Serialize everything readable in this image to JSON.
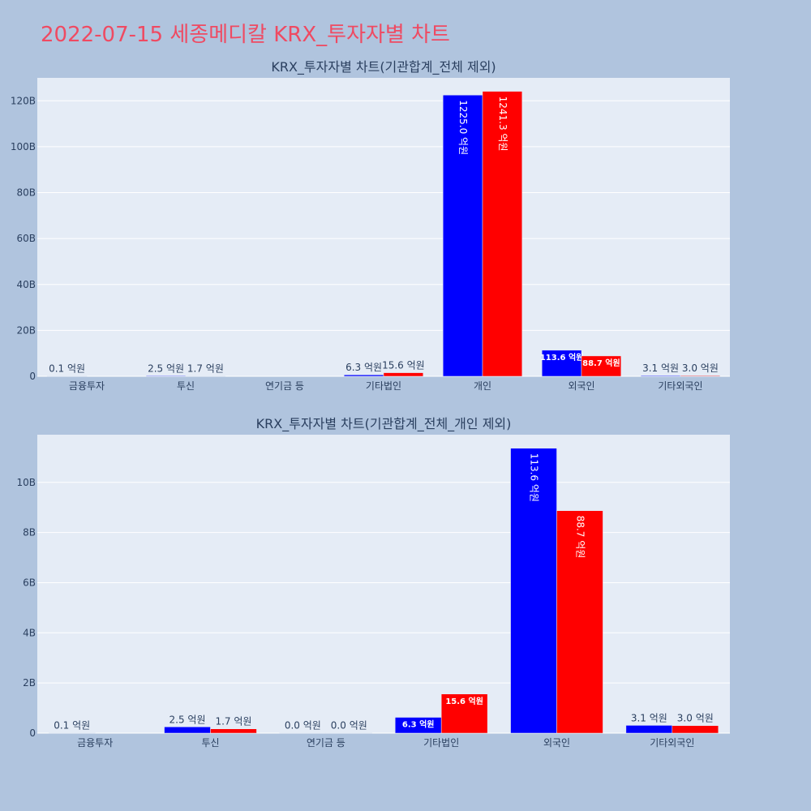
{
  "title": "2022-07-15 세종메디칼 KRX_투자자별 차트",
  "colors": {
    "series_1": "#0000ff",
    "series_2": "#ff0000"
  },
  "chart_data": [
    {
      "type": "bar",
      "title": "KRX_투자자별 차트(기관합계_전체 제외)",
      "categories": [
        "금융투자",
        "투신",
        "연기금 등",
        "기타법인",
        "개인",
        "외국인",
        "기타외국인"
      ],
      "y_tick_labels": [
        "0",
        "20B",
        "40B",
        "60B",
        "80B",
        "100B",
        "120B"
      ],
      "ylim": [
        0,
        130
      ],
      "y_unit": "B",
      "grid": true,
      "series": [
        {
          "values": [
            0.01,
            0.25,
            null,
            0.63,
            122.5,
            11.36,
            0.31
          ],
          "labels": [
            "0.1 억원",
            "2.5 억원",
            "",
            "6.3 억원",
            "1225.0 억원",
            "113.6 억원",
            "3.1 억원"
          ]
        },
        {
          "values": [
            null,
            0.17,
            null,
            1.56,
            124.13,
            8.87,
            0.3
          ],
          "labels": [
            "",
            "1.7 억원",
            "",
            "15.6 억원",
            "1241.3 억원",
            "88.7 억원",
            "3.0 억원"
          ]
        }
      ]
    },
    {
      "type": "bar",
      "title": "KRX_투자자별 차트(기관합계_전체_개인 제외)",
      "categories": [
        "금융투자",
        "투신",
        "연기금 등",
        "기타법인",
        "외국인",
        "기타외국인"
      ],
      "y_tick_labels": [
        "0",
        "2B",
        "4B",
        "6B",
        "8B",
        "10B"
      ],
      "ylim": [
        0,
        11.9
      ],
      "y_unit": "B",
      "grid": true,
      "series": [
        {
          "values": [
            0.01,
            0.25,
            0.0,
            0.63,
            11.36,
            0.31
          ],
          "labels": [
            "0.1 억원",
            "2.5 억원",
            "0.0 억원",
            "6.3 억원",
            "113.6 억원",
            "3.1 억원"
          ]
        },
        {
          "values": [
            null,
            0.17,
            0.0,
            1.56,
            8.87,
            0.3
          ],
          "labels": [
            "",
            "1.7 억원",
            "0.0 억원",
            "15.6 억원",
            "88.7 억원",
            "3.0 억원"
          ]
        }
      ]
    }
  ]
}
